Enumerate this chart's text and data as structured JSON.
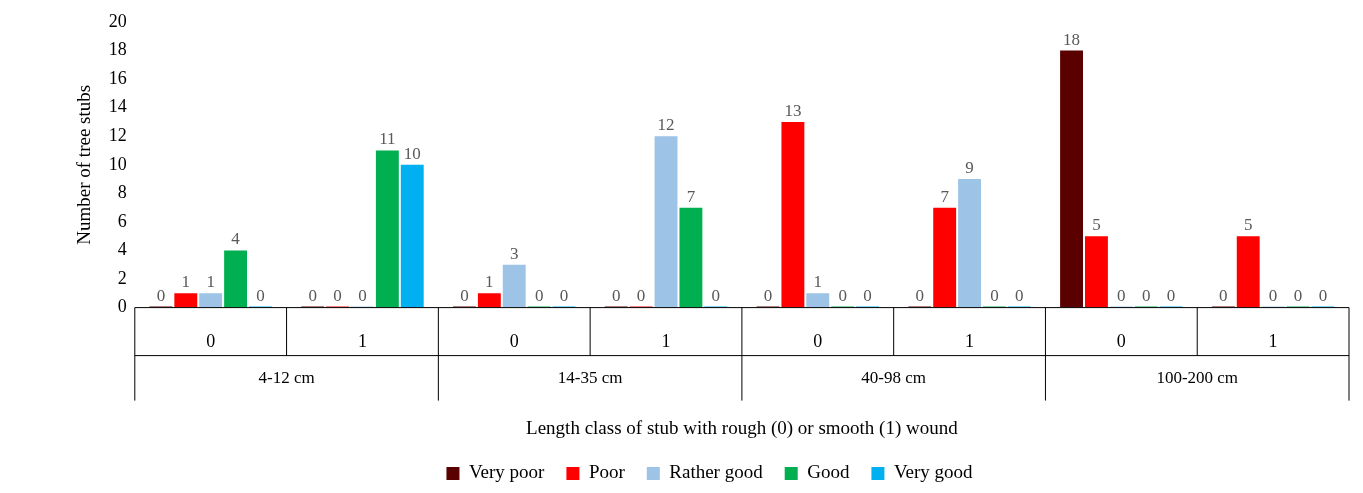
{
  "chart_data": {
    "type": "bar",
    "xlabel": "Length class of stub with rough (0) or smooth (1) wound",
    "ylabel": "Number of tree stubs",
    "categories": [
      "0",
      "1",
      "0",
      "1",
      "0",
      "1",
      "0",
      "1"
    ],
    "annotations": [
      "4-12 cm",
      "14-35 cm",
      "40-98 cm",
      "100-200 cm"
    ],
    "series": [
      {
        "name": "Very poor",
        "color": "#5a0000",
        "values": [
          0,
          0,
          0,
          0,
          0,
          0,
          18,
          0
        ]
      },
      {
        "name": "Poor",
        "color": "#ff0000",
        "values": [
          1,
          0,
          1,
          0,
          13,
          7,
          5,
          5
        ]
      },
      {
        "name": "Rather good",
        "color": "#9dc3e6",
        "values": [
          1,
          0,
          3,
          12,
          1,
          9,
          0,
          0
        ]
      },
      {
        "name": "Good",
        "color": "#00b050",
        "values": [
          4,
          11,
          0,
          7,
          0,
          0,
          0,
          0
        ]
      },
      {
        "name": "Very good",
        "color": "#00b0f0",
        "values": [
          0,
          10,
          0,
          0,
          0,
          0,
          0,
          0
        ]
      }
    ],
    "ylim": [
      0,
      20
    ],
    "yticks": [
      0,
      2,
      4,
      6,
      8,
      10,
      12,
      14,
      16,
      18,
      20
    ],
    "grid": false,
    "legend": "bottom",
    "data_labels": true
  }
}
